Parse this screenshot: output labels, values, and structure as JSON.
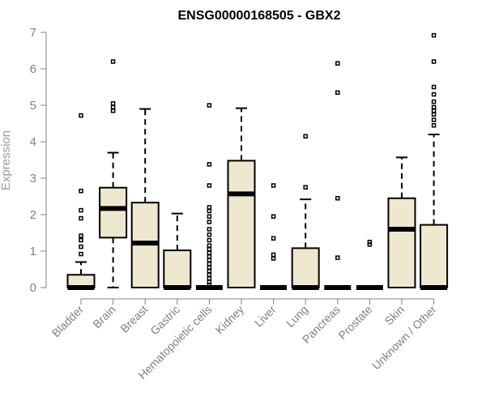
{
  "chart_data": {
    "type": "box",
    "title": "ENSG00000168505 - GBX2",
    "ylabel": "Expression",
    "xlabel": "",
    "ylim": [
      0,
      7
    ],
    "yticks": [
      0,
      1,
      2,
      3,
      4,
      5,
      6,
      7
    ],
    "grid": false,
    "box_fill": "#efe8d0",
    "categories": [
      "Bladder",
      "Brain",
      "Breast",
      "Gastric",
      "Hematopoietic cells",
      "Kidney",
      "Liver",
      "Lung",
      "Pancreas",
      "Prostate",
      "Skin",
      "Unknown / Other"
    ],
    "boxes": [
      {
        "q1": 0,
        "median": 0,
        "q3": 0.35,
        "whisker_low": 0,
        "whisker_high": 0.7,
        "outliers": [
          4.72,
          2.65,
          2.12,
          1.9,
          1.42,
          1.3,
          1.12,
          0.92
        ]
      },
      {
        "q1": 1.37,
        "median": 2.17,
        "q3": 2.74,
        "whisker_low": 0,
        "whisker_high": 3.7,
        "outliers": [
          6.2,
          5.05,
          4.95,
          4.85
        ]
      },
      {
        "q1": 0,
        "median": 1.22,
        "q3": 2.33,
        "whisker_low": 0,
        "whisker_high": 4.9,
        "outliers": []
      },
      {
        "q1": 0,
        "median": 0,
        "q3": 1.02,
        "whisker_low": 0,
        "whisker_high": 2.03,
        "outliers": []
      },
      {
        "q1": 0,
        "median": 0,
        "q3": 0,
        "whisker_low": 0,
        "whisker_high": 0,
        "outliers": [
          5.0,
          3.38,
          2.8,
          2.2,
          2.1,
          1.95,
          1.8,
          1.6,
          1.45,
          1.3,
          1.15,
          1.05,
          0.95,
          0.85,
          0.75,
          0.65,
          0.55,
          0.45,
          0.35,
          0.25,
          0.15,
          0.07
        ]
      },
      {
        "q1": 0,
        "median": 2.57,
        "q3": 3.48,
        "whisker_low": 0,
        "whisker_high": 4.92,
        "outliers": []
      },
      {
        "q1": 0,
        "median": 0,
        "q3": 0,
        "whisker_low": 0,
        "whisker_high": 0,
        "outliers": [
          2.8,
          1.95,
          1.35,
          0.9,
          0.8
        ]
      },
      {
        "q1": 0,
        "median": 0,
        "q3": 1.08,
        "whisker_low": 0,
        "whisker_high": 2.42,
        "outliers": [
          4.15,
          2.75
        ]
      },
      {
        "q1": 0,
        "median": 0,
        "q3": 0,
        "whisker_low": 0,
        "whisker_high": 0,
        "outliers": [
          6.15,
          5.35,
          2.45,
          0.82
        ]
      },
      {
        "q1": 0,
        "median": 0,
        "q3": 0,
        "whisker_low": 0,
        "whisker_high": 0,
        "outliers": [
          1.25,
          1.18
        ]
      },
      {
        "q1": 0,
        "median": 1.6,
        "q3": 2.45,
        "whisker_low": 0,
        "whisker_high": 3.57,
        "outliers": []
      },
      {
        "q1": 0,
        "median": 0,
        "q3": 1.72,
        "whisker_low": 0,
        "whisker_high": 4.2,
        "outliers": [
          6.92,
          6.2,
          5.5,
          5.3,
          5.1,
          4.95,
          4.85,
          4.75,
          4.6,
          4.45
        ]
      }
    ]
  }
}
